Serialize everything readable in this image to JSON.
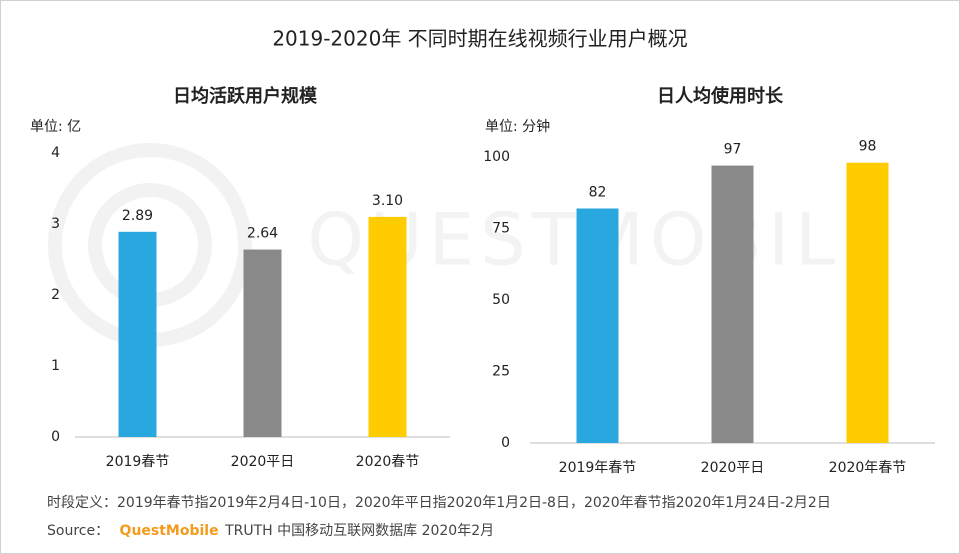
{
  "title": "2019-2020年 不同时期在线视频行业用户概况",
  "watermark": "QUESTMOBILE",
  "footnote": "时段定义：2019年春节指2019年2月4日-10日，2020年平日指2020年1月2日-8日，2020年春节指2020年1月24日-2月2日",
  "source": {
    "label": "Source：",
    "brand": "QuestMobile",
    "text": "TRUTH 中国移动互联网数据库 2020年2月"
  },
  "chart_data": [
    {
      "type": "bar",
      "title": "日均活跃用户规模",
      "unit": "单位: 亿",
      "categories": [
        "2019春节",
        "2020平日",
        "2020春节"
      ],
      "values": [
        2.89,
        2.64,
        3.1
      ],
      "value_labels": [
        "2.89",
        "2.64",
        "3.10"
      ],
      "colors": [
        "#29a8e0",
        "#898989",
        "#ffcc00"
      ],
      "ylim": [
        0,
        4
      ],
      "yticks": [
        0,
        1,
        2,
        3,
        4
      ]
    },
    {
      "type": "bar",
      "title": "日人均使用时长",
      "unit": "单位: 分钟",
      "categories": [
        "2019年春节",
        "2020平日",
        "2020年春节"
      ],
      "values": [
        82,
        97,
        98
      ],
      "colors": [
        "#29a8e0",
        "#898989",
        "#ffcc00"
      ],
      "ylim": [
        0,
        100
      ],
      "yticks": [
        0,
        25,
        50,
        75,
        100
      ]
    }
  ]
}
